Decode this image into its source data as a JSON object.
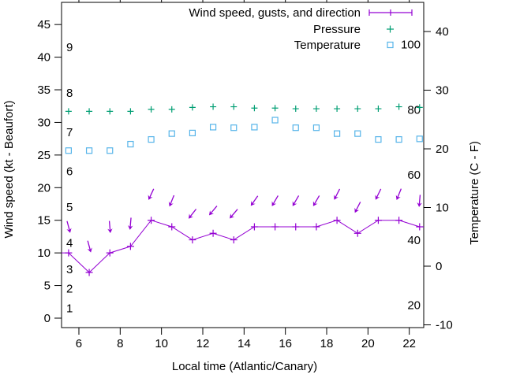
{
  "chart_data": {
    "type": "line",
    "title": "",
    "xlabel": "Local time (Atlantic/Canary)",
    "ylabel": "Wind speed (kt - Beaufort)",
    "y2label": "Temperature (C - F)",
    "grid": false,
    "legend_position": "top-right-inside",
    "axes": {
      "x": {
        "ticks": [
          6,
          8,
          10,
          12,
          14,
          16,
          18,
          20,
          22
        ],
        "range": [
          5.16,
          22.7
        ]
      },
      "y_left": {
        "ticks": [
          0,
          5,
          10,
          15,
          20,
          25,
          30,
          35,
          40,
          45
        ],
        "range": [
          -1.45,
          48.4
        ],
        "unit": "kt"
      },
      "y_right": {
        "ticks": [
          -10,
          0,
          10,
          20,
          30,
          40
        ],
        "range": [
          -10.47,
          44.97
        ],
        "unit": "C"
      }
    },
    "beaufort_labels": [
      {
        "label": "1",
        "kt": 1.5
      },
      {
        "label": "2",
        "kt": 4.5
      },
      {
        "label": "3",
        "kt": 7.5
      },
      {
        "label": "4",
        "kt": 11.5
      },
      {
        "label": "5",
        "kt": 17.0
      },
      {
        "label": "6",
        "kt": 22.5
      },
      {
        "label": "7",
        "kt": 28.5
      },
      {
        "label": "8",
        "kt": 34.5
      },
      {
        "label": "9",
        "kt": 41.5
      }
    ],
    "fahrenheit_labels": [
      {
        "label": "100",
        "f": 100
      },
      {
        "label": "80",
        "f": 80
      },
      {
        "label": "60",
        "f": 60
      },
      {
        "label": "40",
        "f": 40
      },
      {
        "label": "20",
        "f": 20
      }
    ],
    "x_hours": [
      5.5,
      6.5,
      7.5,
      8.5,
      9.5,
      10.5,
      11.5,
      12.5,
      13.5,
      14.5,
      15.5,
      16.5,
      17.5,
      18.5,
      19.5,
      20.5,
      21.5,
      22.5
    ],
    "series": [
      {
        "name": "Wind speed, gusts, and direction",
        "style": "errorbar-line",
        "marker": "plus",
        "color": "#9400d3",
        "axis": "left",
        "values_kt": [
          10,
          7,
          10,
          11,
          15,
          14,
          12,
          13,
          12,
          14,
          14,
          14,
          14,
          15,
          13,
          15,
          15,
          14
        ],
        "gusts_kt": [
          14,
          11,
          14,
          14.5,
          19,
          18,
          16,
          16.5,
          16,
          18,
          18,
          18,
          18,
          19,
          17,
          19,
          19,
          18
        ],
        "direction_rot_deg_cw_from_south": [
          -15,
          -15,
          -5,
          5,
          25,
          22,
          38,
          40,
          40,
          35,
          30,
          30,
          30,
          27,
          27,
          26,
          22,
          5
        ],
        "edge_start_kt": 10,
        "edge_end_kt": 14
      },
      {
        "name": "Pressure",
        "style": "points",
        "marker": "plus",
        "color": "#009e73",
        "axis": "left-unlabeled",
        "values_plot_units_kt": [
          31.7,
          31.7,
          31.7,
          31.7,
          32.0,
          32.0,
          32.3,
          32.4,
          32.4,
          32.2,
          32.2,
          32.1,
          32.1,
          32.1,
          32.1,
          32.1,
          32.4,
          32.3
        ]
      },
      {
        "name": "Temperature",
        "style": "points",
        "marker": "open-square",
        "color": "#56b4e9",
        "axis": "right",
        "values_c": [
          19.7,
          19.7,
          19.7,
          20.8,
          21.6,
          22.6,
          22.7,
          23.7,
          23.6,
          23.7,
          24.9,
          23.6,
          23.6,
          22.6,
          22.6,
          21.6,
          21.6,
          21.7
        ]
      }
    ],
    "colors": {
      "frame": "#000000",
      "text": "#000000",
      "background": "#ffffff"
    }
  }
}
